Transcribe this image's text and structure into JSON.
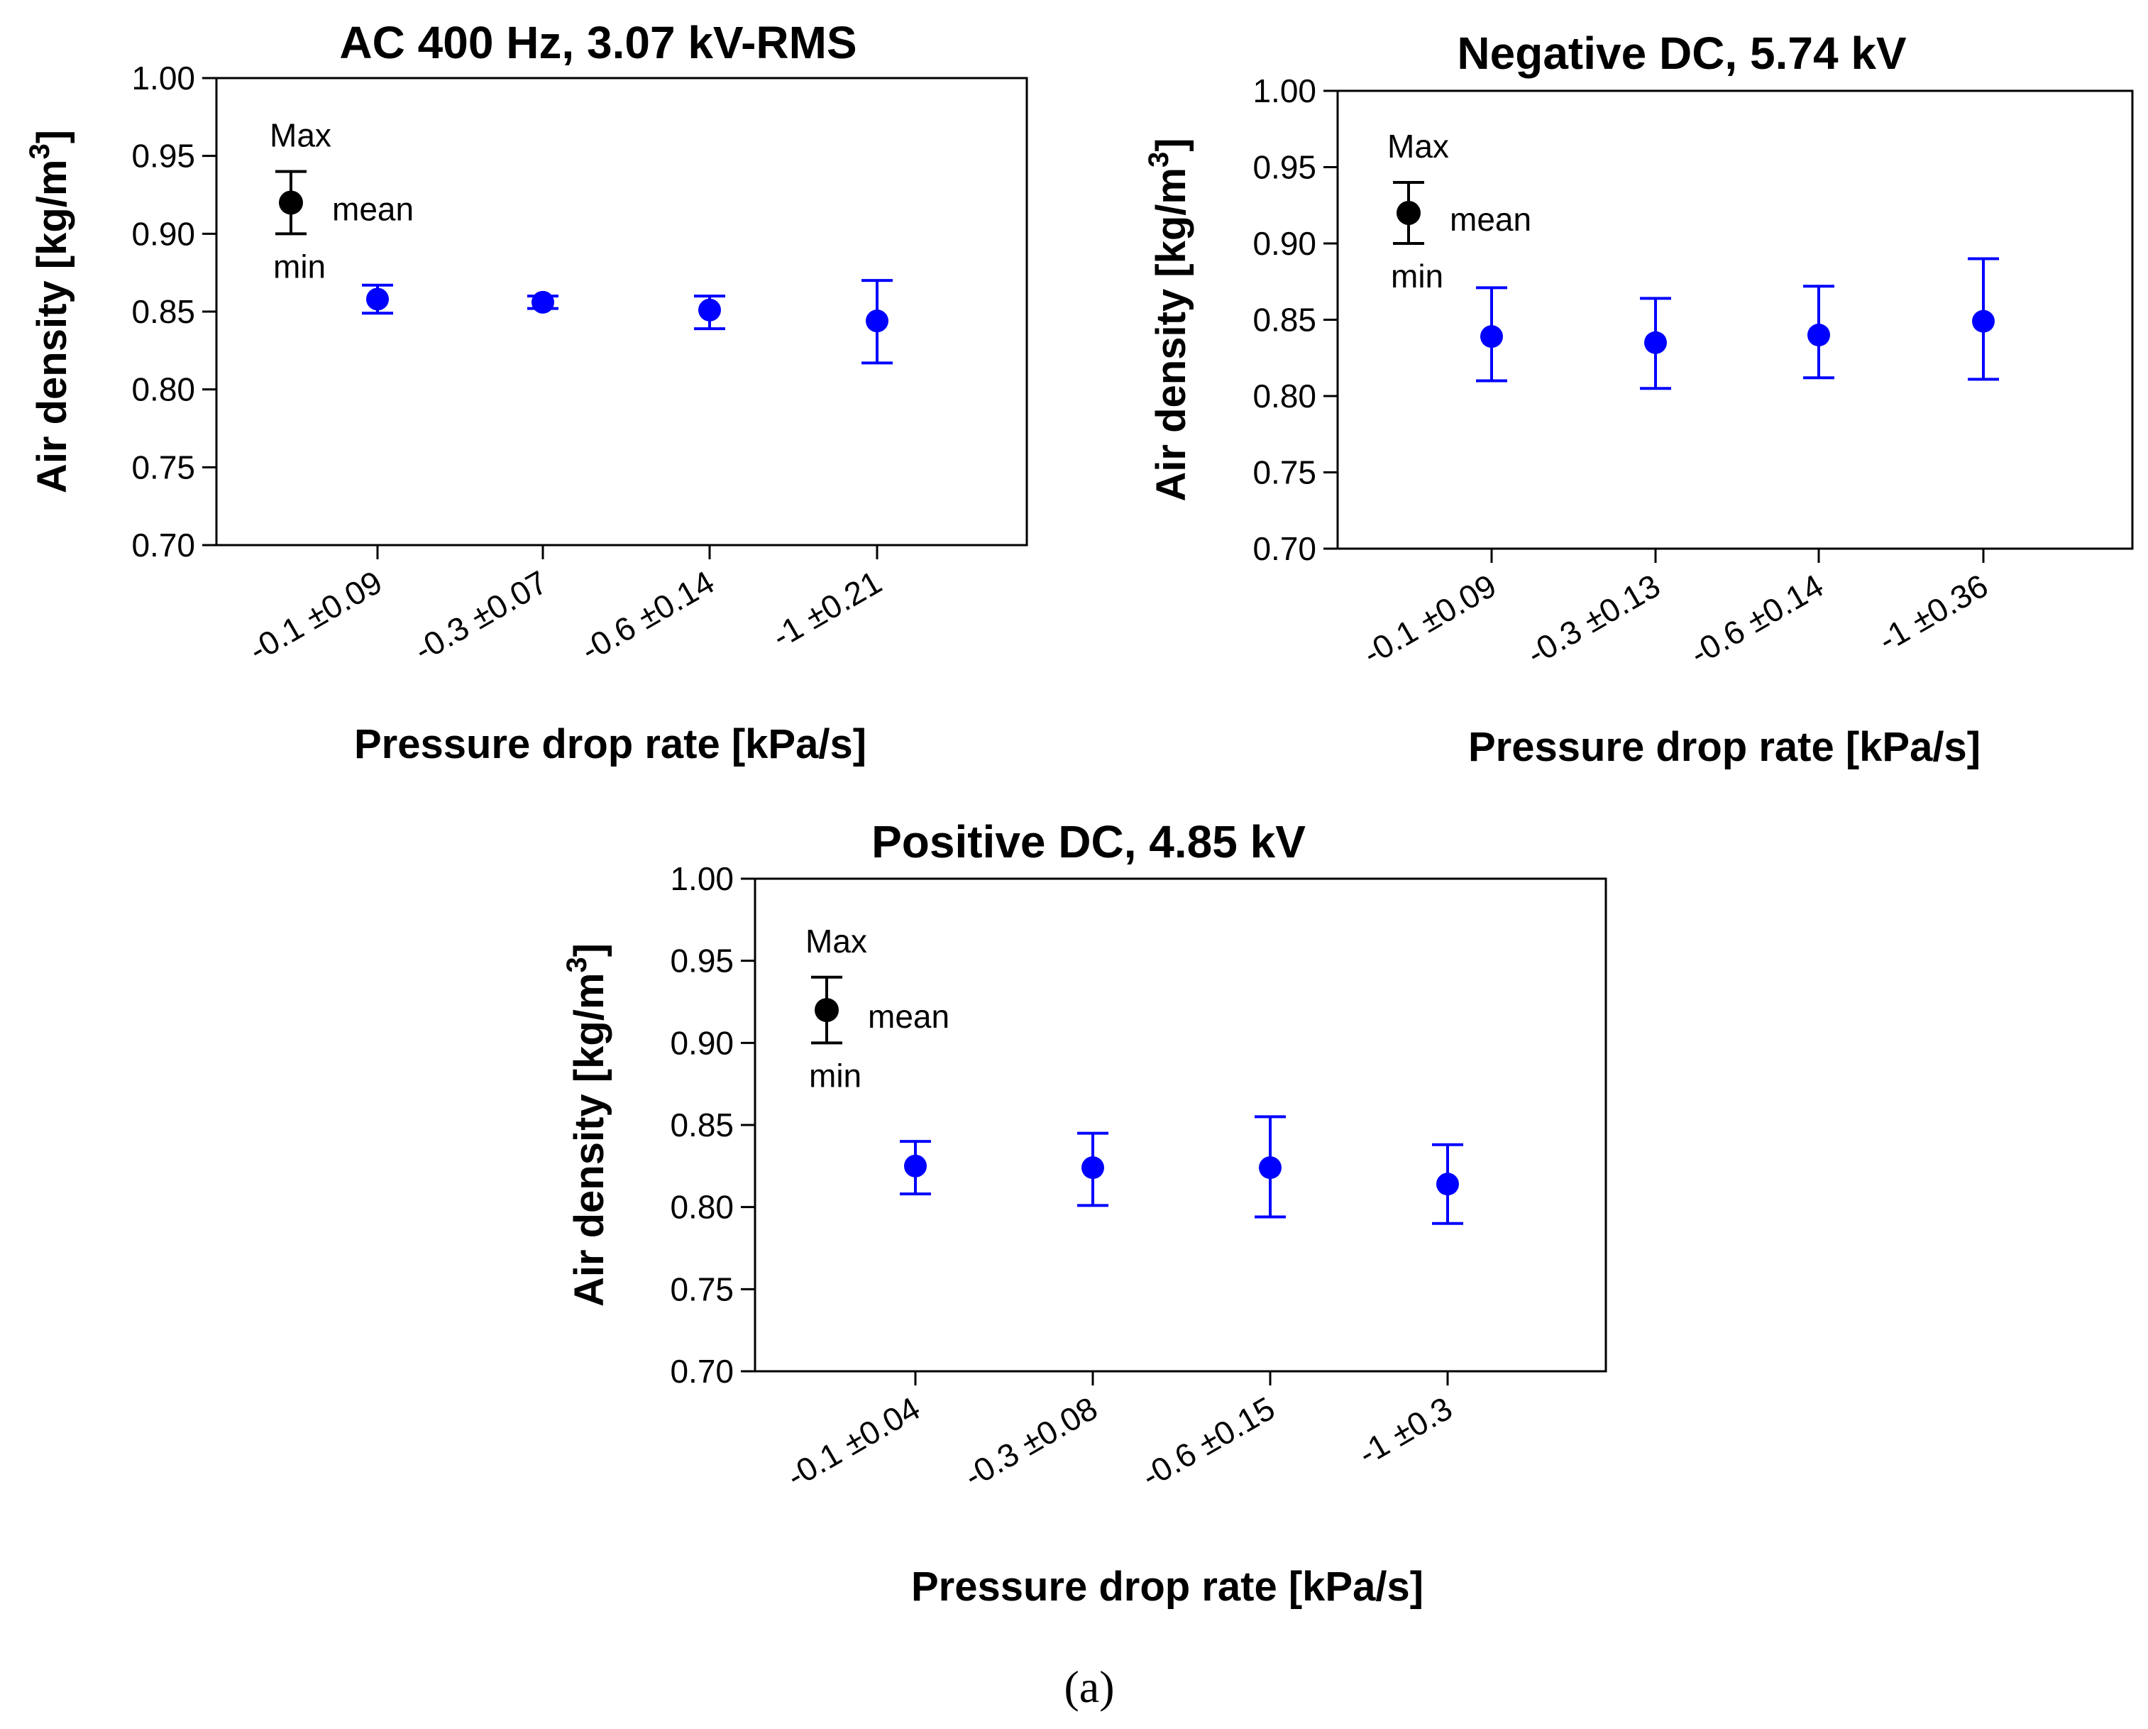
{
  "figure": {
    "caption": "(a)",
    "series_color": "#0000ff",
    "legend_color": "#000000"
  },
  "chart_data": [
    {
      "type": "scatter",
      "title": "AC 400 Hz, 3.07 kV-RMS",
      "xlabel": "Pressure drop rate [kPa/s]",
      "ylabel": "Air density [kg/m",
      "ylabel_sup": "3",
      "ylabel_tail": "]",
      "ylim": [
        0.7,
        1.0
      ],
      "yticks": [
        "0.70",
        "0.75",
        "0.80",
        "0.85",
        "0.90",
        "0.95",
        "1.00"
      ],
      "categories": [
        "-0.1 ±0.09",
        "-0.3 ±0.07",
        "-0.6 ±0.14",
        "-1 ±0.21"
      ],
      "mean": [
        0.858,
        0.856,
        0.851,
        0.844
      ],
      "max": [
        0.867,
        0.86,
        0.86,
        0.87
      ],
      "min": [
        0.849,
        0.852,
        0.839,
        0.817
      ],
      "legend": {
        "max_label": "Max",
        "mean_label": "mean",
        "min_label": "min",
        "mean": 0.92,
        "max": 0.94,
        "min": 0.9
      }
    },
    {
      "type": "scatter",
      "title": "Negative DC, 5.74 kV",
      "xlabel": "Pressure drop rate [kPa/s]",
      "ylabel": "Air density [kg/m",
      "ylabel_sup": "3",
      "ylabel_tail": "]",
      "ylim": [
        0.7,
        1.0
      ],
      "yticks": [
        "0.70",
        "0.75",
        "0.80",
        "0.85",
        "0.90",
        "0.95",
        "1.00"
      ],
      "categories": [
        "-0.1 ±0.09",
        "-0.3 ±0.13",
        "-0.6 ±0.14",
        "-1 ±0.36"
      ],
      "mean": [
        0.839,
        0.835,
        0.84,
        0.849
      ],
      "max": [
        0.871,
        0.864,
        0.872,
        0.89
      ],
      "min": [
        0.81,
        0.805,
        0.812,
        0.811
      ],
      "legend": {
        "max_label": "Max",
        "mean_label": "mean",
        "min_label": "min",
        "mean": 0.92,
        "max": 0.94,
        "min": 0.9
      }
    },
    {
      "type": "scatter",
      "title": "Positive DC, 4.85 kV",
      "xlabel": "Pressure drop rate [kPa/s]",
      "ylabel": "Air density [kg/m",
      "ylabel_sup": "3",
      "ylabel_tail": "]",
      "ylim": [
        0.7,
        1.0
      ],
      "yticks": [
        "0.70",
        "0.75",
        "0.80",
        "0.85",
        "0.90",
        "0.95",
        "1.00"
      ],
      "categories": [
        "-0.1 ±0.04",
        "-0.3 ±0.08",
        "-0.6 ±0.15",
        "-1 ±0.3"
      ],
      "mean": [
        0.825,
        0.824,
        0.824,
        0.814
      ],
      "max": [
        0.84,
        0.845,
        0.855,
        0.838
      ],
      "min": [
        0.808,
        0.801,
        0.794,
        0.79
      ],
      "legend": {
        "max_label": "Max",
        "mean_label": "mean",
        "min_label": "min",
        "mean": 0.92,
        "max": 0.94,
        "min": 0.9
      }
    }
  ]
}
